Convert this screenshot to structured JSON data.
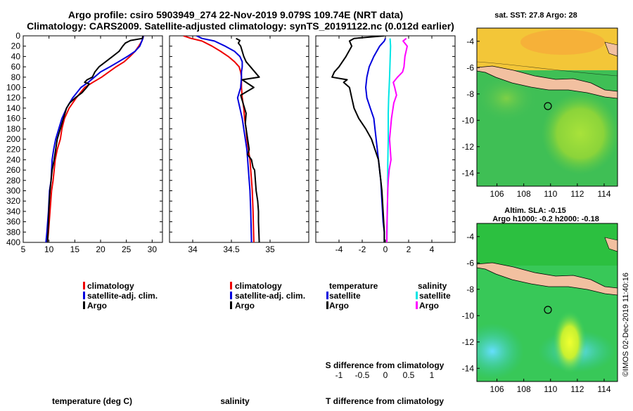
{
  "titles": {
    "line1": "Argo profile: csiro 5903949_274 22-Nov-2019 9.079S 109.74E (NRT data)",
    "line2": "Climatology: CARS2009. Satellite-adjusted climatology: synTS_20191122.nc (0.012d earlier)"
  },
  "colors": {
    "climatology": "#ee0000",
    "satellite": "#0000dd",
    "argo": "#000000",
    "sat_sal": "#00e5e5",
    "argo_sal": "#ff00ff"
  },
  "legend": {
    "climatology": "climatology",
    "satellite_adj": "satellite-adj. clim.",
    "argo": "Argo"
  },
  "diff_legend": {
    "temperature_title": "temperature",
    "salinity_title": "salinity",
    "satellite": "satellite",
    "argo": "Argo"
  },
  "watermark": "©IMOS 02-Dec-2019 11:40:16",
  "chart_data": [
    {
      "type": "line",
      "name": "temperature",
      "xlabel": "temperature (deg C)",
      "ylabel": "depth",
      "xlim": [
        5,
        32
      ],
      "ylim": [
        0,
        400
      ],
      "xticks": [
        5,
        10,
        15,
        20,
        25,
        30
      ],
      "yticks": [
        0,
        20,
        40,
        60,
        80,
        100,
        120,
        140,
        160,
        180,
        200,
        220,
        240,
        260,
        280,
        300,
        320,
        340,
        360,
        380,
        400
      ],
      "series": [
        {
          "name": "climatology",
          "color": "#ee0000",
          "x": [
            28.3,
            28.2,
            28.0,
            27.4,
            26.7,
            25.7,
            24.6,
            23.0,
            21.6,
            20.2,
            18.5,
            16.9,
            15.3,
            13.9,
            13.0,
            12.5,
            12.2,
            11.6,
            11.2,
            10.8,
            10.5,
            10.2,
            9.9,
            9.7
          ],
          "y": [
            0,
            5,
            10,
            20,
            30,
            40,
            50,
            60,
            70,
            80,
            90,
            100,
            120,
            140,
            160,
            180,
            200,
            220,
            240,
            280,
            300,
            340,
            380,
            400
          ]
        },
        {
          "name": "satellite-adj. clim.",
          "color": "#0000dd",
          "x": [
            28.3,
            28.2,
            28.0,
            27.6,
            26.7,
            25.2,
            23.5,
            21.8,
            20.0,
            18.8,
            17.6,
            16.2,
            14.6,
            13.4,
            12.5,
            11.9,
            11.3,
            10.9,
            10.6,
            10.4,
            10.1,
            9.9,
            9.6,
            9.4
          ],
          "y": [
            0,
            5,
            10,
            20,
            30,
            40,
            50,
            60,
            70,
            80,
            90,
            100,
            120,
            140,
            160,
            180,
            200,
            220,
            240,
            280,
            300,
            340,
            380,
            400
          ]
        },
        {
          "name": "Argo",
          "color": "#000000",
          "x": [
            28.2,
            28.1,
            25.8,
            24.8,
            24.3,
            23.6,
            22.3,
            21.0,
            19.7,
            18.9,
            18.4,
            17.4,
            16.9,
            17.8,
            17.3,
            16.4,
            15.1,
            14.0,
            13.4,
            12.8,
            12.2,
            11.6,
            11.3,
            11.0,
            10.6,
            10.4,
            10.2,
            10.0,
            9.9,
            9.8,
            9.7
          ],
          "y": [
            0,
            5,
            9,
            14,
            20,
            30,
            40,
            50,
            60,
            70,
            80,
            85,
            90,
            93,
            100,
            110,
            120,
            130,
            140,
            160,
            180,
            200,
            220,
            240,
            260,
            280,
            300,
            330,
            360,
            380,
            400
          ]
        }
      ]
    },
    {
      "type": "line",
      "name": "salinity",
      "xlabel": "salinity",
      "ylabel": "depth",
      "xlim": [
        33.7,
        35.5
      ],
      "ylim": [
        0,
        400
      ],
      "xticks": [
        34,
        34.5,
        35
      ],
      "series": [
        {
          "name": "climatology",
          "color": "#ee0000",
          "x": [
            33.88,
            33.98,
            34.12,
            34.25,
            34.36,
            34.46,
            34.54,
            34.6,
            34.62,
            34.63,
            34.63,
            34.64,
            34.66,
            34.67,
            34.69,
            34.7,
            34.72,
            34.74,
            34.76,
            34.77,
            34.78,
            34.79
          ],
          "y": [
            0,
            5,
            10,
            20,
            30,
            40,
            50,
            60,
            70,
            80,
            100,
            120,
            140,
            160,
            180,
            200,
            220,
            240,
            280,
            300,
            340,
            400
          ]
        },
        {
          "name": "satellite-adj. clim.",
          "color": "#0000dd",
          "x": [
            34.05,
            34.12,
            34.28,
            34.42,
            34.54,
            34.61,
            34.64,
            34.64,
            34.63,
            34.63,
            34.62,
            34.6,
            34.58,
            34.61,
            34.64,
            34.66,
            34.68,
            34.7,
            34.72,
            34.74,
            34.75,
            34.76
          ],
          "y": [
            0,
            5,
            10,
            20,
            30,
            40,
            50,
            60,
            70,
            80,
            100,
            110,
            120,
            140,
            160,
            180,
            200,
            220,
            260,
            300,
            340,
            400
          ]
        },
        {
          "name": "Argo",
          "color": "#000000",
          "x": [
            34.56,
            34.61,
            34.59,
            34.62,
            34.64,
            34.66,
            34.69,
            34.86,
            34.64,
            34.79,
            34.62,
            34.65,
            34.69,
            34.68,
            34.7,
            34.72,
            34.73,
            34.71,
            34.76,
            34.78,
            34.8,
            34.81,
            34.82,
            34.84,
            34.85,
            34.85,
            34.86
          ],
          "y": [
            5,
            9,
            14,
            20,
            30,
            40,
            50,
            80,
            85,
            100,
            115,
            130,
            150,
            170,
            190,
            210,
            220,
            230,
            240,
            255,
            260,
            280,
            300,
            320,
            340,
            360,
            400
          ]
        }
      ]
    },
    {
      "type": "line",
      "name": "difference",
      "xlabel": "T difference from climatology",
      "x2label": "S difference from climatology",
      "ylabel": "depth",
      "xlim": [
        -6,
        6
      ],
      "ylim": [
        0,
        400
      ],
      "xticks": [
        -4,
        -2,
        0,
        2,
        4
      ],
      "x2lim": [
        -1.5,
        1.5
      ],
      "x2ticks": [
        -1,
        -0.5,
        0,
        0.5,
        1
      ],
      "series": [
        {
          "name": "temperature satellite",
          "color": "#0000dd",
          "x": [
            0.0,
            -0.1,
            -0.5,
            -1.0,
            -1.4,
            -1.6,
            -1.7,
            -1.6,
            -1.3,
            -1.0,
            -0.8,
            -0.6,
            -0.4,
            -0.3,
            -0.2,
            -0.1,
            -0.1
          ],
          "y": [
            5,
            10,
            20,
            40,
            60,
            80,
            100,
            120,
            140,
            160,
            200,
            240,
            280,
            320,
            360,
            380,
            400
          ]
        },
        {
          "name": "temperature Argo",
          "color": "#000000",
          "x": [
            -0.1,
            -2.7,
            -3.1,
            -2.9,
            -3.4,
            -4.0,
            -4.4,
            -4.6,
            -3.3,
            -3.6,
            -3.1,
            -2.9,
            -2.7,
            -2.3,
            -1.7,
            -1.2,
            -0.9,
            -0.6,
            -0.4,
            -0.3,
            -0.2,
            -0.1,
            -0.1
          ],
          "y": [
            0,
            5,
            10,
            20,
            40,
            60,
            70,
            80,
            85,
            90,
            100,
            120,
            140,
            160,
            180,
            200,
            220,
            240,
            280,
            300,
            340,
            380,
            400
          ]
        },
        {
          "name": "salinity satellite",
          "color": "#00e5e5",
          "x": [
            0.1,
            0.11,
            0.1,
            0.09,
            0.08,
            0.07,
            0.06,
            0.06,
            0.05,
            0.05,
            0.04,
            0.03
          ],
          "y": [
            5,
            20,
            50,
            80,
            100,
            120,
            150,
            200,
            250,
            300,
            350,
            400
          ]
        },
        {
          "name": "salinity Argo",
          "color": "#ff00ff",
          "x": [
            0.45,
            0.38,
            0.47,
            0.42,
            0.4,
            0.37,
            0.26,
            0.17,
            0.2,
            0.24,
            0.18,
            0.13,
            0.09,
            0.12,
            0.08,
            0.06,
            0.05,
            0.04,
            0.03,
            0.03
          ],
          "y": [
            5,
            10,
            20,
            40,
            60,
            70,
            80,
            90,
            100,
            115,
            130,
            160,
            200,
            240,
            260,
            280,
            300,
            340,
            380,
            400
          ]
        }
      ]
    }
  ],
  "maps": {
    "top": {
      "title": "sat. SST: 27.8 Argo: 28",
      "xticks": [
        "106",
        "108",
        "110",
        "112",
        "114"
      ],
      "yticks": [
        "-4",
        "-6",
        "-8",
        "-10",
        "-12",
        "-14"
      ]
    },
    "bottom": {
      "title1": "Altim. SLA: -0.15",
      "title2": "Argo h1000: -0.2 h2000: -0.18",
      "xticks": [
        "106",
        "108",
        "110",
        "112",
        "114"
      ],
      "yticks": [
        "-4",
        "-6",
        "-8",
        "-10",
        "-12",
        "-14"
      ]
    }
  }
}
